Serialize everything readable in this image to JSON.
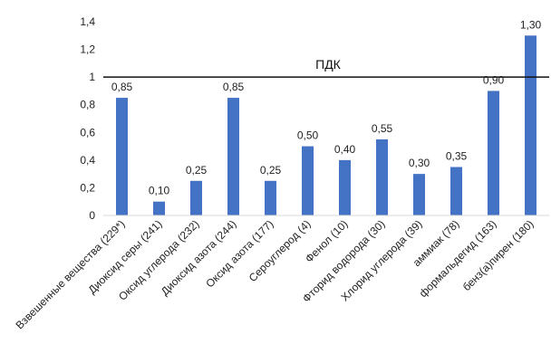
{
  "chart_data": {
    "type": "bar",
    "categories": [
      "Взвешенные вещества (229*)",
      "Диоксид серы (241)",
      "Оксид углерода (232)",
      "Диоксид азота (244)",
      "Оксид азота (177)",
      "Сероуглерод (4)",
      "Фенол (10)",
      "Фторид водорода (30)",
      "Хлорид углерода (39)",
      "аммиак (78)",
      "формальдегид (163)",
      "бенз(а)пирен (180)"
    ],
    "values": [
      0.85,
      0.1,
      0.25,
      0.85,
      0.25,
      0.5,
      0.4,
      0.55,
      0.3,
      0.35,
      0.9,
      1.3
    ],
    "value_labels": [
      "0,85",
      "0,10",
      "0,25",
      "0,85",
      "0,25",
      "0,50",
      "0,40",
      "0,55",
      "0,30",
      "0,35",
      "0,90",
      "1,30"
    ],
    "ylim": [
      0,
      1.4
    ],
    "y_ticks": [
      0,
      0.2,
      0.4,
      0.6,
      0.8,
      1.0,
      1.2,
      1.4
    ],
    "y_tick_labels": [
      "0",
      "0,2",
      "0,4",
      "0,6",
      "0,8",
      "1",
      "1,2",
      "1,4"
    ],
    "reference_line": {
      "value": 1.0,
      "label": "ПДК"
    },
    "bar_color": "#4472C4",
    "grid": false
  }
}
